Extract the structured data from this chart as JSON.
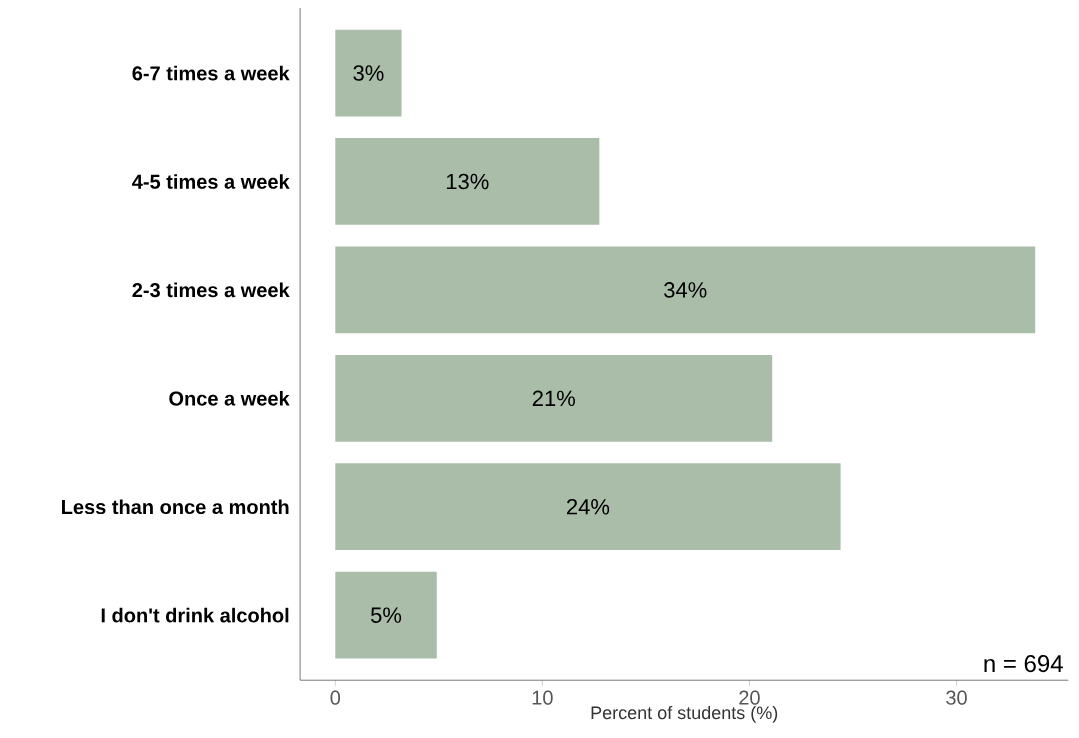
{
  "chart_data": {
    "type": "bar",
    "orientation": "horizontal",
    "categories": [
      "6-7 times a week",
      "4-5 times a week",
      "2-3 times a week",
      "Once a week",
      "Less than once a month",
      "I don't drink alcohol"
    ],
    "values": [
      3.2,
      12.75,
      33.8,
      21.1,
      24.4,
      4.9
    ],
    "value_labels": [
      "3%",
      "13%",
      "34%",
      "21%",
      "24%",
      "5%"
    ],
    "color": "#a9bda8",
    "xlabel": "Percent of students (%)",
    "xlim": [
      -1.7,
      35.4
    ],
    "xticks": [
      0,
      10,
      20,
      30
    ],
    "annotations": [
      "n = 694"
    ]
  }
}
